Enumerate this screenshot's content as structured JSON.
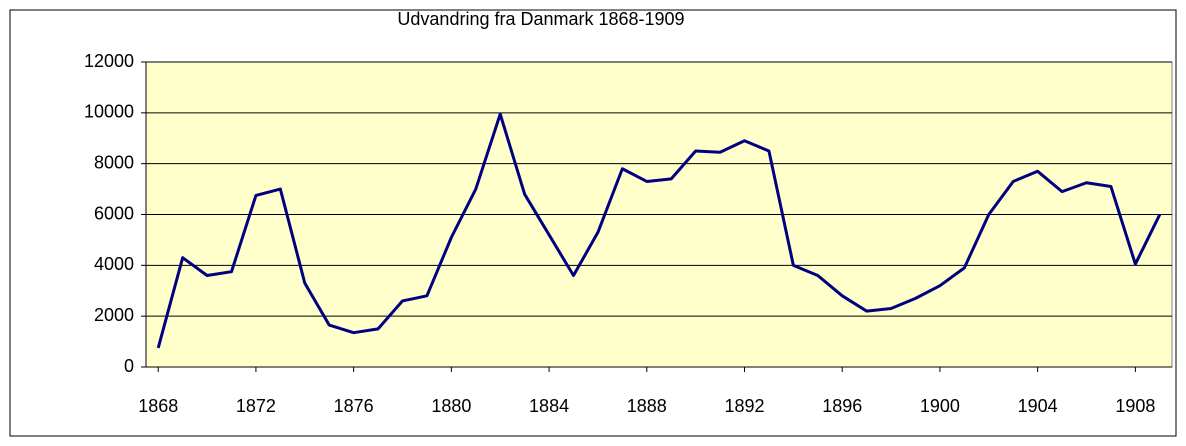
{
  "chart_data": {
    "type": "line",
    "title": "Udvandring fra Danmark  1868-1909",
    "x": [
      1868,
      1869,
      1870,
      1871,
      1872,
      1873,
      1874,
      1875,
      1876,
      1877,
      1878,
      1879,
      1880,
      1881,
      1882,
      1883,
      1884,
      1885,
      1886,
      1887,
      1888,
      1889,
      1890,
      1891,
      1892,
      1893,
      1894,
      1895,
      1896,
      1897,
      1898,
      1899,
      1900,
      1901,
      1902,
      1903,
      1904,
      1905,
      1906,
      1907,
      1908,
      1909
    ],
    "series": [
      {
        "color": "#000080",
        "values": [
          750,
          4300,
          3600,
          3750,
          6750,
          7000,
          3300,
          1650,
          1350,
          1500,
          2600,
          2800,
          5100,
          7000,
          9950,
          6800,
          5200,
          3600,
          5300,
          7800,
          7300,
          7400,
          8500,
          8450,
          8900,
          8500,
          4000,
          3600,
          2800,
          2200,
          2300,
          2700,
          3200,
          3900,
          6000,
          7300,
          7700,
          6900,
          7250,
          7100,
          4050,
          6000
        ]
      }
    ],
    "xlim": [
      1867.5,
      1909.5
    ],
    "xticks": [
      1868,
      1872,
      1876,
      1880,
      1884,
      1888,
      1892,
      1896,
      1900,
      1904,
      1908
    ],
    "ylim": [
      0,
      12000
    ],
    "yticks": [
      0,
      2000,
      4000,
      6000,
      8000,
      10000,
      12000
    ],
    "grid": true,
    "plot_background": "#ffffcc"
  }
}
